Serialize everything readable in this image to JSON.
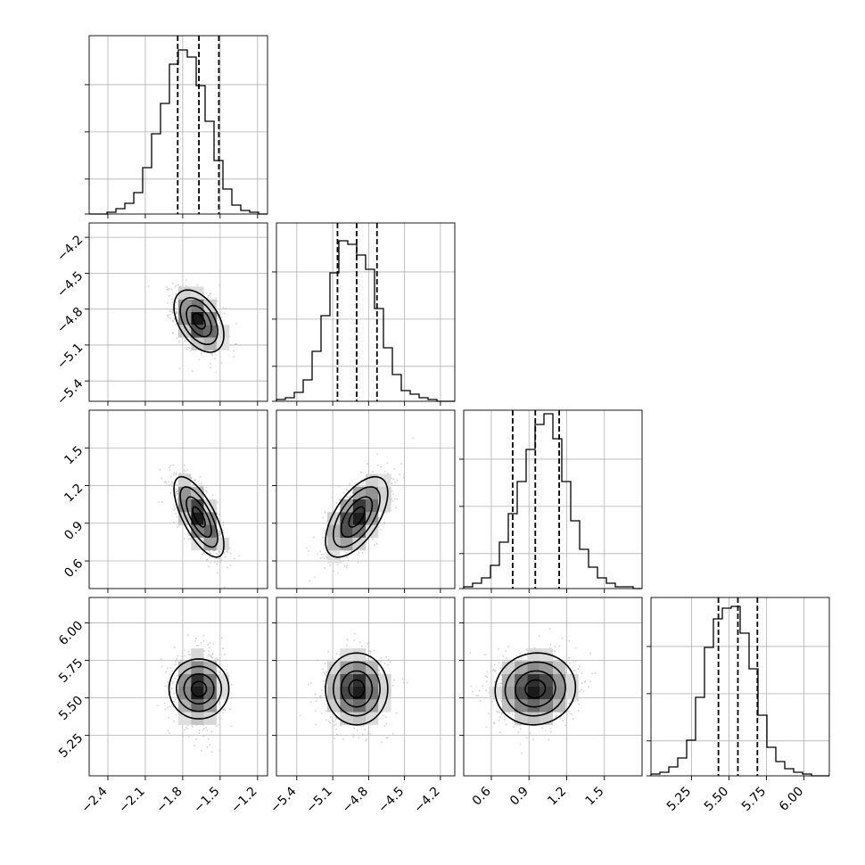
{
  "chart_data": {
    "type": "corner",
    "n_params": 4,
    "grid": true,
    "colors": {
      "hist": "#000000",
      "points": "#bdbdbd",
      "contour": "#000000",
      "grid": "#b0b0b0"
    },
    "tick_labels": {
      "x": [
        [
          "−2.4",
          "−2.1",
          "−1.8",
          "−1.5",
          "−1.2"
        ],
        [
          "−5.4",
          "−5.1",
          "−4.8",
          "−4.5",
          "−4.2"
        ],
        [
          "0.6",
          "0.9",
          "1.2",
          "1.5"
        ],
        [
          "5.25",
          "5.50",
          "5.75",
          "6.00"
        ]
      ],
      "y": [
        [],
        [
          "−4.2",
          "−4.5",
          "−4.8",
          "−5.1",
          "−5.4"
        ],
        [
          "1.5",
          "1.2",
          "0.9",
          "0.6"
        ],
        [
          "6.00",
          "5.75",
          "5.50",
          "5.25"
        ]
      ]
    },
    "params": [
      {
        "range": [
          -2.55,
          -1.12
        ],
        "ticks": [
          -2.4,
          -2.1,
          -1.8,
          -1.5,
          -1.2
        ],
        "mean": -1.67,
        "std": 0.1,
        "quantiles": [
          -1.84,
          -1.67,
          -1.51
        ],
        "hist_levels": [
          0,
          0,
          0.01,
          0.03,
          0.06,
          0.12,
          0.26,
          0.45,
          0.62,
          0.84,
          0.92,
          0.88,
          0.72,
          0.52,
          0.3,
          0.14,
          0.05,
          0.02,
          0.01,
          0
        ]
      },
      {
        "range": [
          -5.57,
          -4.08
        ],
        "ticks": [
          -5.4,
          -5.1,
          -4.8,
          -4.5,
          -4.2
        ],
        "mean": -4.9,
        "std": 0.13,
        "quantiles": [
          -5.06,
          -4.9,
          -4.73
        ],
        "hist_levels": [
          0.01,
          0.02,
          0.05,
          0.12,
          0.28,
          0.48,
          0.72,
          0.9,
          0.88,
          0.82,
          0.74,
          0.52,
          0.3,
          0.15,
          0.06,
          0.04,
          0.02,
          0.01,
          0,
          0
        ]
      },
      {
        "range": [
          0.38,
          1.8
        ],
        "ticks": [
          0.6,
          0.9,
          1.2,
          1.5
        ],
        "mean": 0.95,
        "std": 0.16,
        "quantiles": [
          0.77,
          0.95,
          1.14
        ],
        "hist_levels": [
          0.01,
          0.03,
          0.06,
          0.13,
          0.26,
          0.42,
          0.6,
          0.78,
          0.92,
          0.98,
          0.84,
          0.6,
          0.38,
          0.22,
          0.12,
          0.06,
          0.03,
          0.01,
          0.01,
          0
        ]
      },
      {
        "range": [
          4.98,
          6.17
        ],
        "ticks": [
          5.25,
          5.5,
          5.75,
          6.0
        ],
        "mean": 5.56,
        "std": 0.12,
        "quantiles": [
          5.43,
          5.56,
          5.69
        ],
        "hist_levels": [
          0.01,
          0.02,
          0.05,
          0.1,
          0.2,
          0.44,
          0.72,
          0.88,
          0.94,
          0.95,
          0.8,
          0.6,
          0.34,
          0.16,
          0.08,
          0.04,
          0.02,
          0.01,
          0,
          0
        ]
      }
    ],
    "correlations": [
      {
        "row": 1,
        "col": 0,
        "rho": -0.45
      },
      {
        "row": 2,
        "col": 0,
        "rho": -0.7
      },
      {
        "row": 2,
        "col": 1,
        "rho": 0.6
      },
      {
        "row": 3,
        "col": 0,
        "rho": 0.0
      },
      {
        "row": 3,
        "col": 1,
        "rho": 0.0
      },
      {
        "row": 3,
        "col": 2,
        "rho": 0.05
      }
    ],
    "contour_sigma_levels": [
      0.5,
      1.0,
      1.5,
      2.0
    ],
    "hist_ylabels_shown": false
  }
}
